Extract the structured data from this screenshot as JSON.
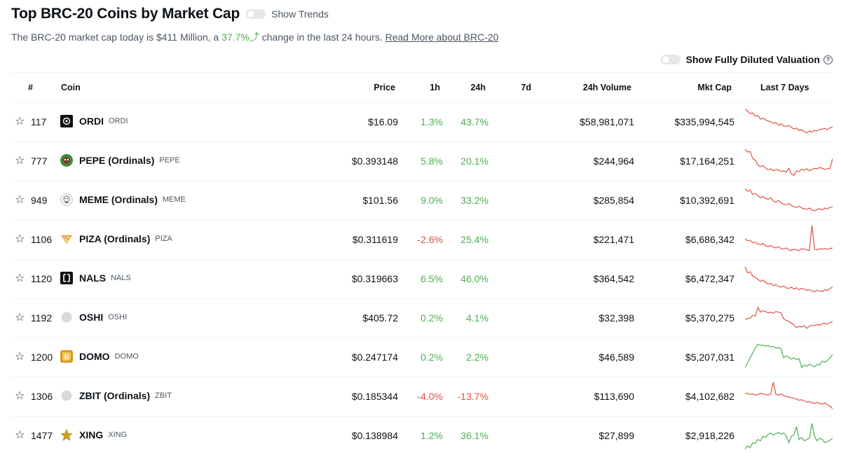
{
  "header": {
    "title": "Top BRC-20 Coins by Market Cap",
    "show_trends_label": "Show Trends"
  },
  "summary": {
    "prefix": "The BRC-20 market cap today is $411 Million, a",
    "change_pct": "37.7%",
    "arrow": "⤴",
    "suffix": "change in the last 24 hours.",
    "read_more": "Read More about BRC-20"
  },
  "fdv": {
    "label": "Show Fully Diluted Valuation",
    "help": "?"
  },
  "columns": {
    "rank": "#",
    "coin": "Coin",
    "price": "Price",
    "h1": "1h",
    "h24": "24h",
    "d7": "7d",
    "volume": "24h Volume",
    "mcap": "Mkt Cap",
    "last7": "Last 7 Days"
  },
  "colors": {
    "positive": "#4caf50",
    "negative": "#e15241",
    "spark_red": "#e15241",
    "spark_green": "#4caf50"
  },
  "coins": [
    {
      "rank": "117",
      "name": "ORDI",
      "symbol": "ORDI",
      "price": "$16.09",
      "h1": "1.3%",
      "h24": "43.7%",
      "volume": "$58,981,071",
      "mcap": "$335,994,545",
      "trend": "down",
      "spark": [
        92,
        85,
        78,
        80,
        70,
        72,
        60,
        64,
        58,
        55,
        52,
        48,
        50,
        42,
        46,
        40,
        38,
        41,
        35,
        30,
        33,
        25,
        28,
        22,
        18,
        24,
        20,
        26,
        24,
        28,
        30,
        32,
        28,
        34,
        36
      ]
    },
    {
      "rank": "777",
      "name": "PEPE (Ordinals)",
      "symbol": "PEPE",
      "price": "$0.393148",
      "h1": "5.8%",
      "h24": "20.1%",
      "volume": "$244,964",
      "mcap": "$17,164,251",
      "trend": "down",
      "spark": [
        90,
        80,
        82,
        60,
        55,
        40,
        35,
        38,
        30,
        25,
        28,
        22,
        26,
        24,
        20,
        22,
        18,
        30,
        12,
        8,
        22,
        20,
        26,
        24,
        28,
        22,
        26,
        30,
        28,
        32,
        30,
        26,
        28,
        30,
        60
      ]
    },
    {
      "rank": "949",
      "name": "MEME (Ordinals)",
      "symbol": "MEME",
      "price": "$101.56",
      "h1": "9.0%",
      "h24": "33.2%",
      "volume": "$285,854",
      "mcap": "$10,392,691",
      "trend": "down",
      "spark": [
        88,
        80,
        84,
        70,
        74,
        66,
        60,
        64,
        58,
        55,
        60,
        50,
        46,
        52,
        44,
        40,
        38,
        42,
        36,
        32,
        30,
        34,
        28,
        26,
        24,
        28,
        22,
        20,
        24,
        26,
        22,
        28,
        26,
        30,
        32
      ]
    },
    {
      "rank": "1106",
      "name": "PIZA (Ordinals)",
      "symbol": "PIZA",
      "price": "$0.311619",
      "h1": "-2.6%",
      "h24": "25.4%",
      "volume": "$221,471",
      "mcap": "$6,686,342",
      "trend": "down",
      "spark": [
        55,
        48,
        50,
        42,
        44,
        38,
        36,
        40,
        32,
        30,
        34,
        28,
        26,
        30,
        24,
        22,
        26,
        20,
        18,
        22,
        20,
        18,
        24,
        22,
        20,
        18,
        96,
        22,
        20,
        24,
        22,
        24,
        22,
        24,
        26
      ]
    },
    {
      "rank": "1120",
      "name": "NALS",
      "symbol": "NALS",
      "price": "$0.319663",
      "h1": "6.5%",
      "h24": "46.0%",
      "volume": "$364,542",
      "mcap": "$6,472,347",
      "trend": "down",
      "spark": [
        90,
        70,
        74,
        60,
        56,
        50,
        44,
        48,
        40,
        36,
        38,
        30,
        34,
        28,
        26,
        30,
        24,
        22,
        26,
        20,
        24,
        18,
        22,
        20,
        16,
        18,
        14,
        12,
        16,
        14,
        12,
        18,
        16,
        22,
        26
      ]
    },
    {
      "rank": "1192",
      "name": "OSHI",
      "symbol": "OSHI",
      "price": "$405.72",
      "h1": "0.2%",
      "h24": "4.1%",
      "volume": "$32,398",
      "mcap": "$5,370,275",
      "trend": "down",
      "spark": [
        48,
        50,
        52,
        60,
        58,
        85,
        70,
        75,
        72,
        68,
        70,
        66,
        72,
        70,
        68,
        50,
        44,
        42,
        36,
        30,
        22,
        26,
        24,
        28,
        20,
        26,
        30,
        28,
        32,
        30,
        34,
        36,
        32,
        38,
        40
      ]
    },
    {
      "rank": "1200",
      "name": "DOMO",
      "symbol": "DOMO",
      "price": "$0.247174",
      "h1": "0.2%",
      "h24": "2.2%",
      "volume": "$46,589",
      "mcap": "$5,207,031",
      "trend": "up",
      "spark": [
        20,
        35,
        50,
        65,
        80,
        92,
        88,
        90,
        86,
        88,
        84,
        86,
        80,
        82,
        78,
        50,
        56,
        52,
        46,
        50,
        44,
        48,
        20,
        28,
        24,
        30,
        26,
        22,
        30,
        28,
        40,
        36,
        42,
        50,
        60
      ]
    },
    {
      "rank": "1306",
      "name": "ZBIT (Ordinals)",
      "symbol": "ZBIT",
      "price": "$0.185344",
      "h1": "-4.0%",
      "h24": "-13.7%",
      "volume": "$113,690",
      "mcap": "$4,102,682",
      "trend": "down",
      "spark": [
        60,
        62,
        58,
        60,
        56,
        58,
        62,
        60,
        58,
        56,
        60,
        96,
        58,
        56,
        60,
        54,
        52,
        50,
        48,
        46,
        44,
        40,
        42,
        38,
        34,
        36,
        32,
        30,
        34,
        30,
        28,
        32,
        26,
        22,
        14
      ]
    },
    {
      "rank": "1477",
      "name": "XING",
      "symbol": "XING",
      "price": "$0.138984",
      "h1": "1.2%",
      "h24": "36.1%",
      "volume": "$27,899",
      "mcap": "$2,918,226",
      "trend": "up",
      "spark": [
        10,
        20,
        15,
        30,
        28,
        40,
        36,
        50,
        46,
        56,
        60,
        54,
        58,
        62,
        56,
        60,
        52,
        30,
        50,
        55,
        80,
        40,
        46,
        36,
        40,
        44,
        90,
        50,
        36,
        44,
        40,
        30,
        34,
        38,
        44
      ]
    }
  ]
}
